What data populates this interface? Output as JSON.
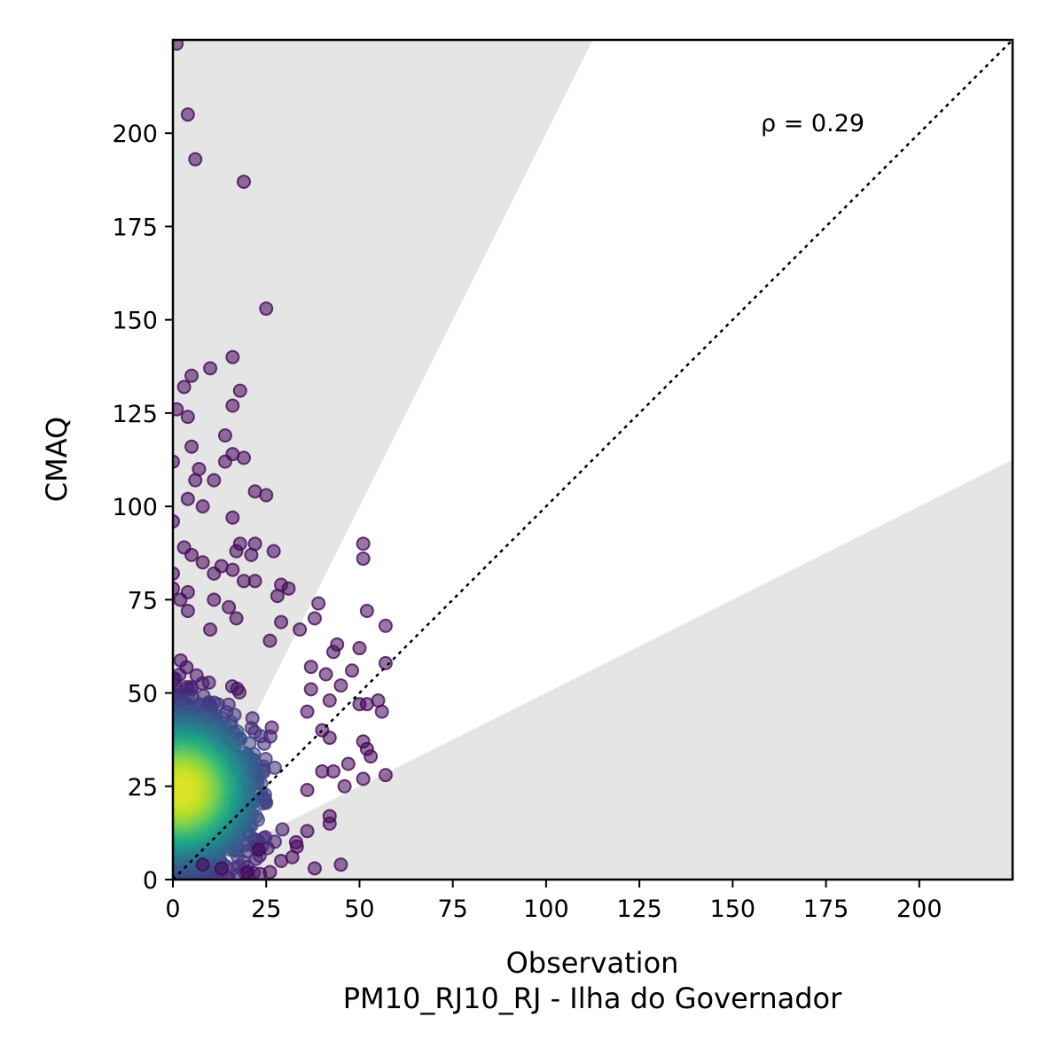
{
  "chart_data": {
    "type": "scatter",
    "title": "",
    "xlabel": "Observation",
    "xlabel_line2": "PM10_RJ10_RJ - Ilha do Governador",
    "ylabel": "CMAQ",
    "xlim": [
      0,
      225
    ],
    "ylim": [
      0,
      225
    ],
    "xticks": [
      0,
      25,
      50,
      75,
      100,
      125,
      150,
      175,
      200
    ],
    "yticks": [
      0,
      25,
      50,
      75,
      100,
      125,
      150,
      175,
      200
    ],
    "annotation": "ρ = 0.29",
    "reference_line": "1:1 dotted",
    "shaded_regions": "outside factor-of-2 band (y > 2x and y < 0.5x)",
    "colormap": "viridis (point density)",
    "grid": false,
    "outlier_points": [
      {
        "x": 1,
        "y": 224
      },
      {
        "x": 4,
        "y": 205
      },
      {
        "x": 6,
        "y": 193
      },
      {
        "x": 19,
        "y": 187
      },
      {
        "x": 25,
        "y": 153
      },
      {
        "x": 16,
        "y": 140
      },
      {
        "x": 10,
        "y": 137
      },
      {
        "x": 5,
        "y": 135
      },
      {
        "x": 3,
        "y": 132
      },
      {
        "x": 18,
        "y": 131
      },
      {
        "x": 16,
        "y": 127
      },
      {
        "x": 1,
        "y": 126
      },
      {
        "x": 4,
        "y": 124
      },
      {
        "x": 14,
        "y": 119
      },
      {
        "x": 5,
        "y": 116
      },
      {
        "x": 16,
        "y": 114
      },
      {
        "x": 19,
        "y": 113
      },
      {
        "x": 0,
        "y": 112
      },
      {
        "x": 14,
        "y": 112
      },
      {
        "x": 7,
        "y": 110
      },
      {
        "x": 11,
        "y": 107
      },
      {
        "x": 6,
        "y": 107
      },
      {
        "x": 22,
        "y": 104
      },
      {
        "x": 25,
        "y": 103
      },
      {
        "x": 4,
        "y": 102
      },
      {
        "x": 8,
        "y": 100
      },
      {
        "x": 0,
        "y": 96
      },
      {
        "x": 16,
        "y": 97
      },
      {
        "x": 18,
        "y": 90
      },
      {
        "x": 22,
        "y": 90
      },
      {
        "x": 51,
        "y": 90
      },
      {
        "x": 3,
        "y": 89
      },
      {
        "x": 27,
        "y": 88
      },
      {
        "x": 17,
        "y": 88
      },
      {
        "x": 51,
        "y": 86
      },
      {
        "x": 5,
        "y": 87
      },
      {
        "x": 8,
        "y": 85
      },
      {
        "x": 21,
        "y": 87
      },
      {
        "x": 13,
        "y": 84
      },
      {
        "x": 0,
        "y": 82
      },
      {
        "x": 16,
        "y": 83
      },
      {
        "x": 11,
        "y": 82
      },
      {
        "x": 19,
        "y": 80
      },
      {
        "x": 22,
        "y": 80
      },
      {
        "x": 29,
        "y": 79
      },
      {
        "x": 31,
        "y": 78
      },
      {
        "x": 4,
        "y": 77
      },
      {
        "x": 28,
        "y": 76
      },
      {
        "x": 0,
        "y": 78
      },
      {
        "x": 11,
        "y": 75
      },
      {
        "x": 15,
        "y": 73
      },
      {
        "x": 2,
        "y": 75
      },
      {
        "x": 39,
        "y": 74
      },
      {
        "x": 52,
        "y": 72
      },
      {
        "x": 4,
        "y": 72
      },
      {
        "x": 17,
        "y": 70
      },
      {
        "x": 38,
        "y": 70
      },
      {
        "x": 29,
        "y": 69
      },
      {
        "x": 57,
        "y": 68
      },
      {
        "x": 34,
        "y": 67
      },
      {
        "x": 10,
        "y": 67
      },
      {
        "x": 26,
        "y": 64
      },
      {
        "x": 44,
        "y": 63
      },
      {
        "x": 50,
        "y": 62
      },
      {
        "x": 43,
        "y": 61
      },
      {
        "x": 57,
        "y": 58
      },
      {
        "x": 37,
        "y": 57
      },
      {
        "x": 48,
        "y": 56
      },
      {
        "x": 41,
        "y": 55
      },
      {
        "x": 37,
        "y": 51
      },
      {
        "x": 45,
        "y": 52
      },
      {
        "x": 55,
        "y": 48
      },
      {
        "x": 50,
        "y": 47
      },
      {
        "x": 52,
        "y": 47
      },
      {
        "x": 42,
        "y": 48
      },
      {
        "x": 56,
        "y": 45
      },
      {
        "x": 36,
        "y": 45
      },
      {
        "x": 40,
        "y": 40
      },
      {
        "x": 42,
        "y": 38
      },
      {
        "x": 51,
        "y": 37
      },
      {
        "x": 52,
        "y": 35
      },
      {
        "x": 53,
        "y": 33
      },
      {
        "x": 47,
        "y": 31
      },
      {
        "x": 43,
        "y": 29
      },
      {
        "x": 57,
        "y": 28
      },
      {
        "x": 40,
        "y": 29
      },
      {
        "x": 51,
        "y": 27
      },
      {
        "x": 46,
        "y": 25
      },
      {
        "x": 36,
        "y": 24
      },
      {
        "x": 42,
        "y": 17
      },
      {
        "x": 42,
        "y": 15
      },
      {
        "x": 36,
        "y": 13
      },
      {
        "x": 33,
        "y": 10
      },
      {
        "x": 32,
        "y": 6
      },
      {
        "x": 38,
        "y": 3
      },
      {
        "x": 45,
        "y": 4
      },
      {
        "x": 26,
        "y": 2
      },
      {
        "x": 20,
        "y": 2
      },
      {
        "x": 13,
        "y": 3
      },
      {
        "x": 8,
        "y": 4
      },
      {
        "x": 23,
        "y": 8
      },
      {
        "x": 29,
        "y": 5
      }
    ],
    "density_cluster": {
      "center_x": 2,
      "center_y": 24,
      "spread_x": 18,
      "spread_y": 18,
      "max_x": 50,
      "max_y": 68
    }
  }
}
